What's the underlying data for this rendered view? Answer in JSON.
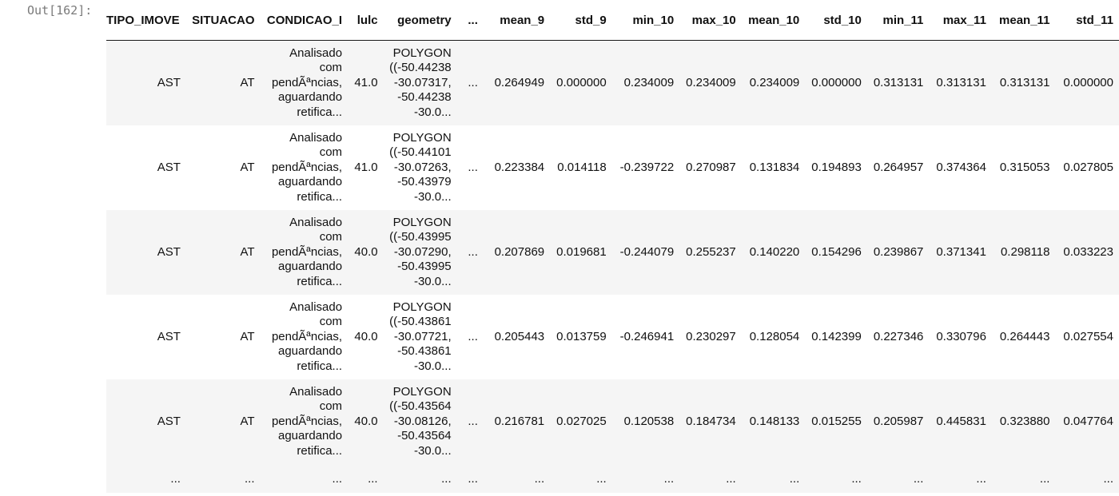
{
  "prompt": "Out[162]:",
  "columns": [
    "TIPO_IMOVE",
    "SITUACAO",
    "CONDICAO_I",
    "lulc",
    "geometry",
    "...",
    "mean_9",
    "std_9",
    "min_10",
    "max_10",
    "mean_10",
    "std_10",
    "min_11",
    "max_11",
    "mean_11",
    "std_11"
  ],
  "rows": [
    {
      "tipo": "AST",
      "situacao": "AT",
      "condicao": [
        "Analisado",
        "com",
        "pendÃªncias,",
        "aguardando",
        "retifica..."
      ],
      "lulc": "41.0",
      "geometry": [
        "POLYGON",
        "((-50.44238",
        "-30.07317,",
        "-50.44238",
        "-30.0..."
      ],
      "ellipsis": "...",
      "values": [
        "0.264949",
        "0.000000",
        "0.234009",
        "0.234009",
        "0.234009",
        "0.000000",
        "0.313131",
        "0.313131",
        "0.313131",
        "0.000000"
      ]
    },
    {
      "tipo": "AST",
      "situacao": "AT",
      "condicao": [
        "Analisado",
        "com",
        "pendÃªncias,",
        "aguardando",
        "retifica..."
      ],
      "lulc": "41.0",
      "geometry": [
        "POLYGON",
        "((-50.44101",
        "-30.07263,",
        "-50.43979",
        "-30.0..."
      ],
      "ellipsis": "...",
      "values": [
        "0.223384",
        "0.014118",
        "-0.239722",
        "0.270987",
        "0.131834",
        "0.194893",
        "0.264957",
        "0.374364",
        "0.315053",
        "0.027805"
      ]
    },
    {
      "tipo": "AST",
      "situacao": "AT",
      "condicao": [
        "Analisado",
        "com",
        "pendÃªncias,",
        "aguardando",
        "retifica..."
      ],
      "lulc": "40.0",
      "geometry": [
        "POLYGON",
        "((-50.43995",
        "-30.07290,",
        "-50.43995",
        "-30.0..."
      ],
      "ellipsis": "...",
      "values": [
        "0.207869",
        "0.019681",
        "-0.244079",
        "0.255237",
        "0.140220",
        "0.154296",
        "0.239867",
        "0.371341",
        "0.298118",
        "0.033223"
      ]
    },
    {
      "tipo": "AST",
      "situacao": "AT",
      "condicao": [
        "Analisado",
        "com",
        "pendÃªncias,",
        "aguardando",
        "retifica..."
      ],
      "lulc": "40.0",
      "geometry": [
        "POLYGON",
        "((-50.43861",
        "-30.07721,",
        "-50.43861",
        "-30.0..."
      ],
      "ellipsis": "...",
      "values": [
        "0.205443",
        "0.013759",
        "-0.246941",
        "0.230297",
        "0.128054",
        "0.142399",
        "0.227346",
        "0.330796",
        "0.264443",
        "0.027554"
      ]
    },
    {
      "tipo": "AST",
      "situacao": "AT",
      "condicao": [
        "Analisado",
        "com",
        "pendÃªncias,",
        "aguardando",
        "retifica..."
      ],
      "lulc": "40.0",
      "geometry": [
        "POLYGON",
        "((-50.43564",
        "-30.08126,",
        "-50.43564",
        "-30.0..."
      ],
      "ellipsis": "...",
      "values": [
        "0.216781",
        "0.027025",
        "0.120538",
        "0.184734",
        "0.148133",
        "0.015255",
        "0.205987",
        "0.445831",
        "0.323880",
        "0.047764"
      ]
    }
  ],
  "ellipsis_row": [
    "...",
    "...",
    "...",
    "...",
    "...",
    "...",
    "...",
    "...",
    "...",
    "...",
    "...",
    "...",
    "...",
    "...",
    "...",
    "..."
  ]
}
